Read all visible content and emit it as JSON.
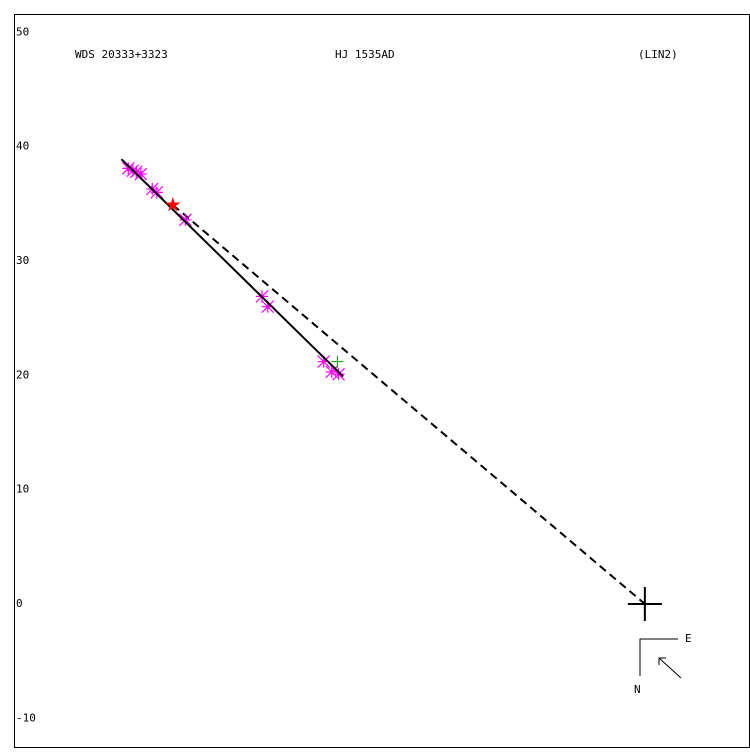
{
  "chart_data": {
    "type": "scatter",
    "labels": [
      "WDS 20333+3323",
      "HJ 1535AD",
      "(LIN2)"
    ],
    "xlim": [
      -55.2,
      9.2
    ],
    "ylim": [
      -12.6,
      51.6
    ],
    "yticks": [
      50,
      40,
      30,
      20,
      10,
      0,
      -10
    ],
    "points": {
      "color": "#ff00ff",
      "x": [
        -45.2,
        -44.8,
        -44.5,
        -44.1,
        -43.1,
        -42.7,
        -40.2,
        -33.5,
        -33.0,
        -28.1,
        -27.4,
        -26.8
      ],
      "y": [
        38.1,
        37.9,
        37.8,
        37.6,
        36.3,
        36.0,
        33.6,
        26.9,
        26.0,
        21.2,
        20.3,
        20.1
      ]
    },
    "plus_point": {
      "color": "#009900",
      "x": -26.9,
      "y": 21.2
    },
    "star_point": {
      "color": "#ff0000",
      "x": -41.3,
      "y": 34.9
    },
    "fit_line": {
      "color": "#000000",
      "x": [
        -45.8,
        -26.4
      ],
      "y": [
        38.9,
        19.9
      ]
    },
    "dashed_line": {
      "color": "#000000",
      "x": [
        -41.3,
        0
      ],
      "y": [
        34.9,
        0
      ]
    },
    "origin": {
      "x": 0,
      "y": 0
    },
    "compass": {
      "east": "E",
      "north": "N"
    }
  }
}
